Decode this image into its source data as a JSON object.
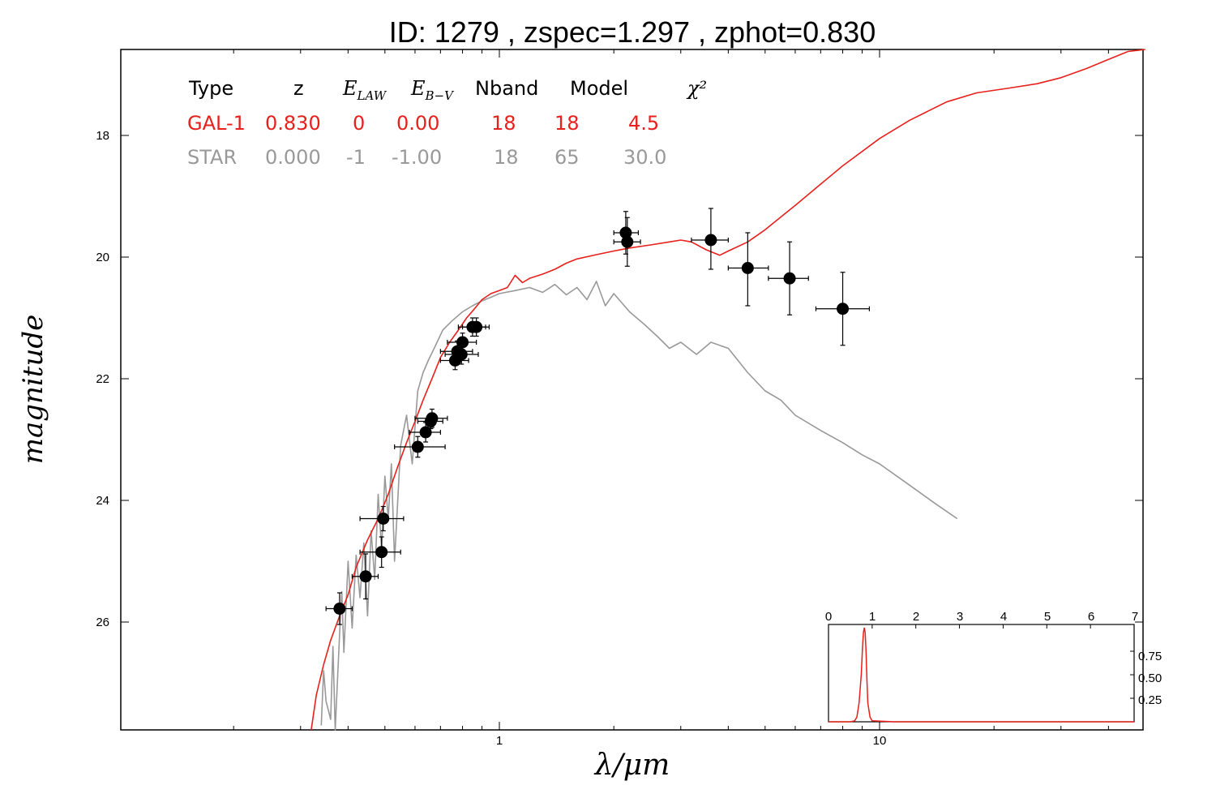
{
  "chart_data": [
    {
      "type": "line",
      "title": "ID:  1279  , zspec=1.297 , zphot=0.830",
      "xlabel": "λ/μm",
      "ylabel": "magnitude",
      "x_scale": "log",
      "xlim": [
        0.1,
        50
      ],
      "ylim": [
        27.8,
        16.6
      ],
      "y_inverted": true,
      "x_tick_labels": [
        "1",
        "10"
      ],
      "y_tick_labels": [
        "18",
        "20",
        "22",
        "24",
        "26"
      ],
      "legend_table": {
        "header": [
          "Type",
          "z",
          "E_LAW",
          "E_B-V",
          "Nband",
          "Model",
          "χ²"
        ],
        "rows": [
          {
            "Type": "GAL-1",
            "z": "0.830",
            "E_LAW": "0",
            "E_B-V": "0.00",
            "Nband": "18",
            "Model": "18",
            "chi2": "4.5",
            "color": "#e8201c"
          },
          {
            "Type": "STAR",
            "z": "0.000",
            "E_LAW": "-1",
            "E_B-V": "-1.00",
            "Nband": "18",
            "Model": "65",
            "chi2": "30.0",
            "color": "#999999"
          }
        ]
      },
      "series": [
        {
          "name": "GAL-1",
          "color": "#e8201c",
          "x": [
            0.32,
            0.33,
            0.345,
            0.36,
            0.38,
            0.4,
            0.42,
            0.45,
            0.48,
            0.51,
            0.54,
            0.57,
            0.6,
            0.63,
            0.67,
            0.7,
            0.74,
            0.78,
            0.82,
            0.86,
            0.9,
            0.95,
            1.0,
            1.05,
            1.1,
            1.15,
            1.2,
            1.3,
            1.4,
            1.5,
            1.6,
            1.8,
            2.0,
            2.2,
            2.5,
            2.8,
            3.0,
            3.2,
            3.5,
            3.8,
            4.0,
            4.5,
            5.0,
            6.0,
            7.0,
            8.0,
            10.0,
            12.0,
            15.0,
            18.0,
            22.0,
            26.0,
            30.0,
            35.0,
            40.0,
            45.0,
            50.0
          ],
          "y": [
            27.8,
            27.2,
            26.7,
            26.3,
            25.9,
            25.55,
            25.1,
            24.65,
            24.3,
            23.9,
            23.45,
            23.05,
            22.7,
            22.35,
            21.95,
            21.65,
            21.4,
            21.2,
            21.0,
            20.85,
            20.7,
            20.6,
            20.55,
            20.5,
            20.3,
            20.42,
            20.35,
            20.28,
            20.2,
            20.1,
            20.03,
            19.96,
            19.9,
            19.85,
            19.8,
            19.75,
            19.72,
            19.75,
            19.88,
            19.97,
            19.9,
            19.75,
            19.55,
            19.15,
            18.8,
            18.5,
            18.05,
            17.75,
            17.45,
            17.3,
            17.22,
            17.15,
            17.05,
            16.9,
            16.75,
            16.62,
            16.5
          ]
        },
        {
          "name": "STAR",
          "color": "#999999",
          "x": [
            0.34,
            0.345,
            0.35,
            0.36,
            0.365,
            0.37,
            0.38,
            0.385,
            0.39,
            0.4,
            0.41,
            0.42,
            0.43,
            0.44,
            0.45,
            0.46,
            0.47,
            0.48,
            0.49,
            0.5,
            0.51,
            0.52,
            0.53,
            0.55,
            0.57,
            0.59,
            0.61,
            0.63,
            0.65,
            0.68,
            0.71,
            0.75,
            0.8,
            0.85,
            0.9,
            0.95,
            1.0,
            1.1,
            1.2,
            1.3,
            1.4,
            1.5,
            1.6,
            1.7,
            1.8,
            1.9,
            2.0,
            2.2,
            2.4,
            2.6,
            2.8,
            3.0,
            3.3,
            3.6,
            4.0,
            4.5,
            5.0,
            5.5,
            6.0,
            7.0,
            8.0,
            9.0,
            10.0,
            12.0,
            14.0,
            16.0
          ],
          "y": [
            27.7,
            26.8,
            27.3,
            27.6,
            26.4,
            27.8,
            26.2,
            25.5,
            26.5,
            25.0,
            26.1,
            24.9,
            25.6,
            24.7,
            25.9,
            24.5,
            25.3,
            23.9,
            24.8,
            23.6,
            24.3,
            23.4,
            25.0,
            23.1,
            22.6,
            23.4,
            22.2,
            21.9,
            21.7,
            21.45,
            21.2,
            21.05,
            20.9,
            20.8,
            20.72,
            20.66,
            20.6,
            20.55,
            20.5,
            20.58,
            20.45,
            20.62,
            20.5,
            20.7,
            20.4,
            20.8,
            20.6,
            20.9,
            21.1,
            21.3,
            21.5,
            21.4,
            21.6,
            21.4,
            21.5,
            21.9,
            22.2,
            22.35,
            22.6,
            22.85,
            23.05,
            23.25,
            23.4,
            23.75,
            24.05,
            24.3
          ]
        }
      ],
      "observations": [
        {
          "x": 0.38,
          "y": 25.78,
          "xerr": [
            0.35,
            0.41
          ],
          "yerr": [
            25.52,
            26.04
          ]
        },
        {
          "x": 0.445,
          "y": 25.25,
          "xerr": [
            0.41,
            0.48
          ],
          "yerr": [
            24.88,
            25.62
          ]
        },
        {
          "x": 0.49,
          "y": 24.85,
          "xerr": [
            0.43,
            0.55
          ],
          "yerr": [
            24.6,
            25.1
          ]
        },
        {
          "x": 0.495,
          "y": 24.3,
          "xerr": [
            0.43,
            0.56
          ],
          "yerr": [
            24.1,
            24.5
          ]
        },
        {
          "x": 0.61,
          "y": 23.12,
          "xerr": [
            0.53,
            0.72
          ],
          "yerr": [
            22.95,
            23.29
          ]
        },
        {
          "x": 0.64,
          "y": 22.88,
          "xerr": [
            0.58,
            0.7
          ],
          "yerr": [
            22.72,
            23.04
          ]
        },
        {
          "x": 0.665,
          "y": 22.65,
          "xerr": [
            0.6,
            0.73
          ],
          "yerr": [
            22.5,
            22.8
          ]
        },
        {
          "x": 0.66,
          "y": 22.7,
          "xerr": [
            0.61,
            0.71
          ],
          "yerr": [
            22.58,
            22.82
          ]
        },
        {
          "x": 0.765,
          "y": 21.7,
          "xerr": [
            0.7,
            0.83
          ],
          "yerr": [
            21.55,
            21.85
          ]
        },
        {
          "x": 0.775,
          "y": 21.55,
          "xerr": [
            0.7,
            0.85
          ],
          "yerr": [
            21.38,
            21.72
          ]
        },
        {
          "x": 0.795,
          "y": 21.6,
          "xerr": [
            0.72,
            0.88
          ],
          "yerr": [
            21.44,
            21.76
          ]
        },
        {
          "x": 0.8,
          "y": 21.4,
          "xerr": [
            0.73,
            0.87
          ],
          "yerr": [
            21.25,
            21.55
          ]
        },
        {
          "x": 0.85,
          "y": 21.15,
          "xerr": [
            0.78,
            0.92
          ],
          "yerr": [
            21.0,
            21.3
          ]
        },
        {
          "x": 0.87,
          "y": 21.15,
          "xerr": [
            0.8,
            0.94
          ],
          "yerr": [
            21.0,
            21.3
          ]
        },
        {
          "x": 2.15,
          "y": 19.6,
          "xerr": [
            2.0,
            2.32
          ],
          "yerr": [
            19.25,
            19.95
          ]
        },
        {
          "x": 2.17,
          "y": 19.75,
          "xerr": [
            2.0,
            2.35
          ],
          "yerr": [
            19.35,
            20.15
          ]
        },
        {
          "x": 3.6,
          "y": 19.72,
          "xerr": [
            3.2,
            4.0
          ],
          "yerr": [
            19.2,
            20.2
          ]
        },
        {
          "x": 4.5,
          "y": 20.18,
          "xerr": [
            4.0,
            5.1
          ],
          "yerr": [
            19.6,
            20.8
          ]
        },
        {
          "x": 5.8,
          "y": 20.35,
          "xerr": [
            5.1,
            6.5
          ],
          "yerr": [
            19.75,
            20.95
          ]
        },
        {
          "x": 8.0,
          "y": 20.85,
          "xerr": [
            6.8,
            9.4
          ],
          "yerr": [
            20.25,
            21.45
          ]
        }
      ]
    },
    {
      "type": "line",
      "title": "",
      "xlim": [
        0,
        7
      ],
      "ylim": [
        0,
        1
      ],
      "x_tick_labels": [
        "0",
        "1",
        "2",
        "3",
        "4",
        "5",
        "6",
        "7"
      ],
      "y_tick_labels": [
        "0.25",
        "0.50",
        "0.75"
      ],
      "series": [
        {
          "color": "#e8201c",
          "x": [
            0.0,
            0.5,
            0.6,
            0.65,
            0.7,
            0.75,
            0.78,
            0.8,
            0.82,
            0.84,
            0.86,
            0.88,
            0.9,
            0.95,
            1.0,
            1.5,
            3.0,
            7.0
          ],
          "y": [
            0.0,
            0.0,
            0.01,
            0.05,
            0.2,
            0.5,
            0.8,
            0.95,
            1.0,
            0.95,
            0.75,
            0.45,
            0.2,
            0.05,
            0.01,
            0.0,
            0.0,
            0.0
          ]
        }
      ]
    }
  ]
}
